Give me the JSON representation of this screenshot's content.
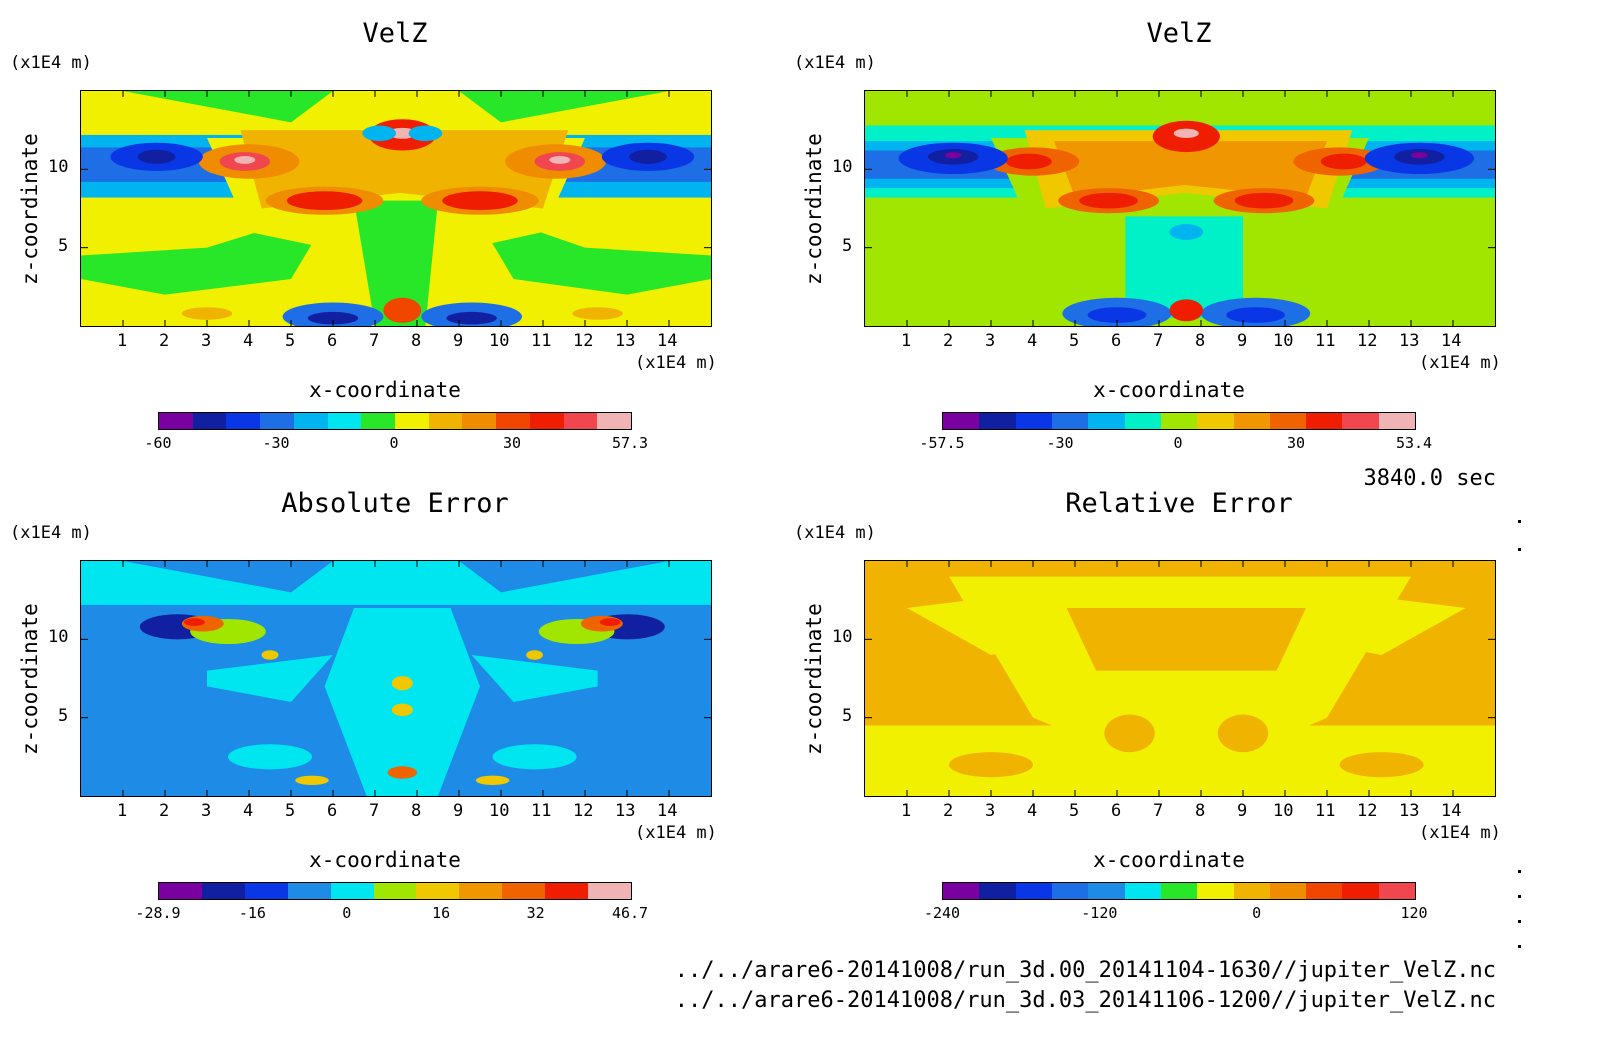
{
  "panels": [
    {
      "title": "VelZ",
      "yunit": "(x1E4 m)",
      "xunit": "(x1E4 m)",
      "xlabel": "x-coordinate",
      "ylabel": "z-coordinate",
      "colors": [
        "#7b00a0",
        "#1020a0",
        "#0a37e6",
        "#1e6ee6",
        "#00b4f0",
        "#00e6f0",
        "#28e628",
        "#f0f000",
        "#f0b400",
        "#f08c00",
        "#f04600",
        "#f01e00",
        "#f04650",
        "#f0b4b4"
      ],
      "cbticks": [
        "-60",
        "-30",
        "0",
        "30",
        "57.3"
      ],
      "scheme": "velz1"
    },
    {
      "title": "VelZ",
      "yunit": "(x1E4 m)",
      "xunit": "(x1E4 m)",
      "xlabel": "x-coordinate",
      "ylabel": "z-coordinate",
      "colors": [
        "#7b00a0",
        "#1020a0",
        "#0a37e6",
        "#1e6ee6",
        "#00b4f0",
        "#00f0c8",
        "#a0e600",
        "#f0c800",
        "#f09600",
        "#f06400",
        "#f01e00",
        "#f04650",
        "#f0b4b4"
      ],
      "cbticks": [
        "-57.5",
        "-30",
        "0",
        "30",
        "53.4"
      ],
      "scheme": "velz2"
    },
    {
      "title": "Absolute Error",
      "yunit": "(x1E4 m)",
      "xunit": "(x1E4 m)",
      "xlabel": "x-coordinate",
      "ylabel": "z-coordinate",
      "colors": [
        "#7b00a0",
        "#1020a0",
        "#0a37e6",
        "#1e8ce6",
        "#00e6f0",
        "#a0e600",
        "#f0c800",
        "#f09600",
        "#f06400",
        "#f01e00",
        "#f0b4b4"
      ],
      "cbticks": [
        "-28.9",
        "-16",
        "0",
        "16",
        "32",
        "46.7"
      ],
      "scheme": "abs"
    },
    {
      "title": "Relative Error",
      "yunit": "(x1E4 m)",
      "xunit": "(x1E4 m)",
      "xlabel": "x-coordinate",
      "ylabel": "z-coordinate",
      "colors": [
        "#7b00a0",
        "#1020a0",
        "#0a37e6",
        "#1e6ee6",
        "#1e8ce6",
        "#00e6f0",
        "#28e628",
        "#f0f000",
        "#f0b400",
        "#f08c00",
        "#f04600",
        "#f01e00",
        "#f04650"
      ],
      "cbticks": [
        "-240",
        "-120",
        "0",
        "120"
      ],
      "scheme": "rel"
    }
  ],
  "xticks": [
    "1",
    "2",
    "3",
    "4",
    "5",
    "6",
    "7",
    "8",
    "9",
    "10",
    "11",
    "12",
    "13",
    "14"
  ],
  "yticks": [
    "5",
    "10"
  ],
  "time_label": "3840.0 sec",
  "files": [
    "../../arare6-20141008/run_3d.00_20141104-1630//jupiter_VelZ.nc",
    "../../arare6-20141008/run_3d.03_20141106-1200//jupiter_VelZ.nc"
  ],
  "chart_data": [
    {
      "type": "heatmap",
      "title": "VelZ",
      "xlabel": "x-coordinate",
      "ylabel": "z-coordinate",
      "xunit": "(x1E4 m)",
      "yunit": "(x1E4 m)",
      "xlim": [
        0,
        15
      ],
      "ylim": [
        0,
        15
      ],
      "colorbar_ticks": [
        -60,
        -30,
        0,
        30,
        57.3
      ],
      "colorbar_range": [
        -60,
        57.3
      ]
    },
    {
      "type": "heatmap",
      "title": "VelZ",
      "xlabel": "x-coordinate",
      "ylabel": "z-coordinate",
      "xunit": "(x1E4 m)",
      "yunit": "(x1E4 m)",
      "xlim": [
        0,
        15
      ],
      "ylim": [
        0,
        15
      ],
      "colorbar_ticks": [
        -57.5,
        -30,
        0,
        30,
        53.4
      ],
      "colorbar_range": [
        -57.5,
        53.4
      ]
    },
    {
      "type": "heatmap",
      "title": "Absolute Error",
      "xlabel": "x-coordinate",
      "ylabel": "z-coordinate",
      "xunit": "(x1E4 m)",
      "yunit": "(x1E4 m)",
      "xlim": [
        0,
        15
      ],
      "ylim": [
        0,
        15
      ],
      "colorbar_ticks": [
        -28.9,
        -16,
        0,
        16,
        32,
        46.7
      ],
      "colorbar_range": [
        -28.9,
        46.7
      ]
    },
    {
      "type": "heatmap",
      "title": "Relative Error",
      "xlabel": "x-coordinate",
      "ylabel": "z-coordinate",
      "xunit": "(x1E4 m)",
      "yunit": "(x1E4 m)",
      "xlim": [
        0,
        15
      ],
      "ylim": [
        0,
        15
      ],
      "colorbar_ticks": [
        -240,
        -120,
        0,
        120
      ]
    }
  ]
}
